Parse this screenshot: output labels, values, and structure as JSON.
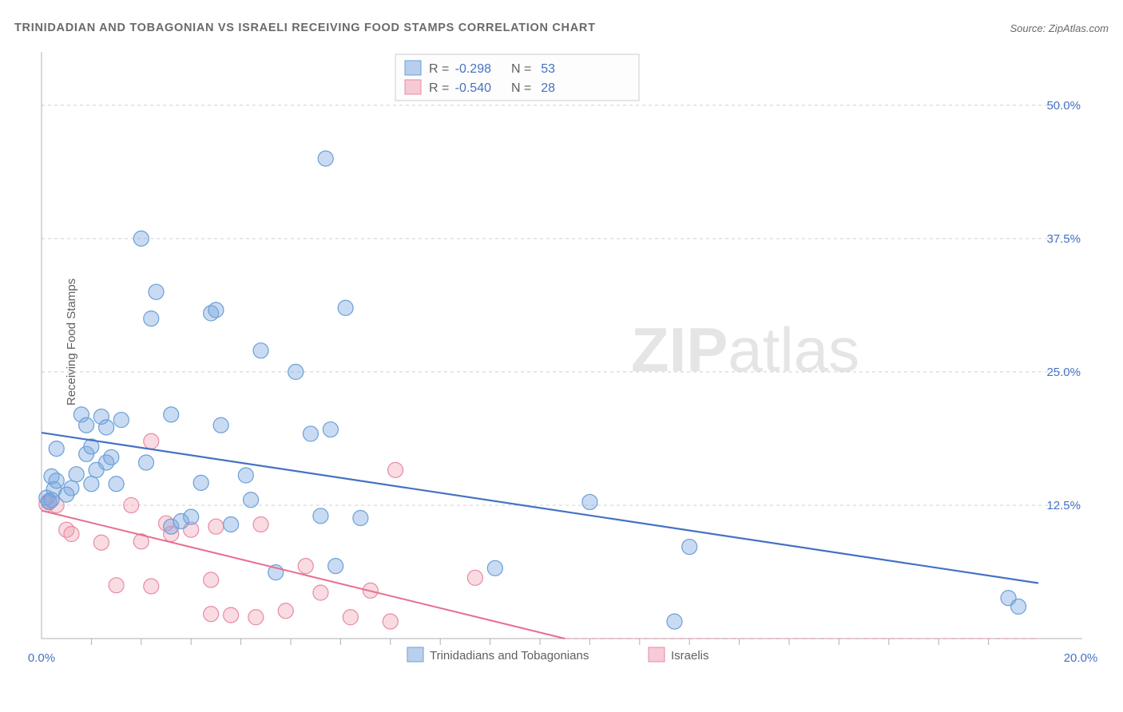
{
  "header": {
    "title": "TRINIDADIAN AND TOBAGONIAN VS ISRAELI RECEIVING FOOD STAMPS CORRELATION CHART",
    "source": "Source: ZipAtlas.com"
  },
  "y_axis_label": "Receiving Food Stamps",
  "chart": {
    "type": "scatter",
    "xlim": [
      0,
      20
    ],
    "ylim": [
      0,
      55
    ],
    "yticks": [
      12.5,
      25.0,
      37.5,
      50.0
    ],
    "ytick_labels": [
      "12.5%",
      "25.0%",
      "37.5%",
      "50.0%"
    ],
    "x_minor_ticks": [
      1,
      2,
      3,
      4,
      5,
      6,
      7,
      8,
      9,
      10,
      11,
      12,
      13,
      14,
      15,
      16,
      17,
      18,
      19
    ],
    "x_start_label": "0.0%",
    "x_end_label": "20.0%",
    "marker_radius": 9.5,
    "colors": {
      "blue_fill": "rgba(126,170,224,0.42)",
      "blue_stroke": "#6a9fd8",
      "pink_fill": "rgba(240,160,180,0.38)",
      "pink_stroke": "#e88aa5",
      "trend_blue": "#4472c4",
      "trend_pink": "#e76f8f",
      "grid": "#d0d0d0",
      "axis": "#b0b0b0",
      "tick_text": "#4472c4",
      "label_text": "#606060",
      "background": "#ffffff"
    },
    "series_blue": {
      "label": "Trinidadians and Tobagonians",
      "R": "-0.298",
      "N": "53",
      "points": [
        [
          0.1,
          13.2
        ],
        [
          0.15,
          12.8
        ],
        [
          0.2,
          13.0
        ],
        [
          0.2,
          15.2
        ],
        [
          0.25,
          14.0
        ],
        [
          0.3,
          14.8
        ],
        [
          0.3,
          17.8
        ],
        [
          0.6,
          14.1
        ],
        [
          0.7,
          15.4
        ],
        [
          0.8,
          21.0
        ],
        [
          0.9,
          17.3
        ],
        [
          0.9,
          20.0
        ],
        [
          1.0,
          18.0
        ],
        [
          1.0,
          14.5
        ],
        [
          1.1,
          15.8
        ],
        [
          1.2,
          20.8
        ],
        [
          1.3,
          19.8
        ],
        [
          1.3,
          16.5
        ],
        [
          1.4,
          17.0
        ],
        [
          1.5,
          14.5
        ],
        [
          1.6,
          20.5
        ],
        [
          2.0,
          37.5
        ],
        [
          2.1,
          16.5
        ],
        [
          2.2,
          30.0
        ],
        [
          2.3,
          32.5
        ],
        [
          2.6,
          10.5
        ],
        [
          2.6,
          21.0
        ],
        [
          2.8,
          11.0
        ],
        [
          3.0,
          11.4
        ],
        [
          3.2,
          14.6
        ],
        [
          3.4,
          30.5
        ],
        [
          3.5,
          30.8
        ],
        [
          3.6,
          20.0
        ],
        [
          3.8,
          10.7
        ],
        [
          4.1,
          15.3
        ],
        [
          4.2,
          13.0
        ],
        [
          4.4,
          27.0
        ],
        [
          4.7,
          6.2
        ],
        [
          5.1,
          25.0
        ],
        [
          5.4,
          19.2
        ],
        [
          5.6,
          11.5
        ],
        [
          5.7,
          45.0
        ],
        [
          5.8,
          19.6
        ],
        [
          5.9,
          6.8
        ],
        [
          6.1,
          31.0
        ],
        [
          6.4,
          11.3
        ],
        [
          9.1,
          6.6
        ],
        [
          11.0,
          12.8
        ],
        [
          12.7,
          1.6
        ],
        [
          13.0,
          8.6
        ],
        [
          19.4,
          3.8
        ],
        [
          19.6,
          3.0
        ],
        [
          0.5,
          13.5
        ]
      ],
      "trend": {
        "x1": 0,
        "y1": 19.3,
        "x2": 20,
        "y2": 5.2
      }
    },
    "series_pink": {
      "label": "Israelis",
      "R": "-0.540",
      "N": "28",
      "points": [
        [
          0.1,
          12.6
        ],
        [
          0.15,
          12.9
        ],
        [
          0.3,
          12.5
        ],
        [
          0.5,
          10.2
        ],
        [
          0.6,
          9.8
        ],
        [
          1.2,
          9.0
        ],
        [
          1.5,
          5.0
        ],
        [
          1.8,
          12.5
        ],
        [
          2.0,
          9.1
        ],
        [
          2.2,
          4.9
        ],
        [
          2.2,
          18.5
        ],
        [
          2.5,
          10.8
        ],
        [
          2.6,
          9.8
        ],
        [
          3.0,
          10.2
        ],
        [
          3.4,
          5.5
        ],
        [
          3.4,
          2.3
        ],
        [
          3.5,
          10.5
        ],
        [
          3.8,
          2.2
        ],
        [
          4.3,
          2.0
        ],
        [
          4.4,
          10.7
        ],
        [
          4.9,
          2.6
        ],
        [
          5.3,
          6.8
        ],
        [
          5.6,
          4.3
        ],
        [
          6.2,
          2.0
        ],
        [
          6.6,
          4.5
        ],
        [
          7.0,
          1.6
        ],
        [
          7.1,
          15.8
        ],
        [
          8.7,
          5.7
        ]
      ],
      "trend_solid": {
        "x1": 0,
        "y1": 12.0,
        "x2": 10.5,
        "y2": 0
      },
      "trend_dash": {
        "x1": 10.5,
        "y1": 0,
        "x2": 20,
        "y2": 0
      }
    }
  },
  "legend_top": {
    "row1": {
      "R_label": "R =",
      "R_val": "-0.298",
      "N_label": "N =",
      "N_val": "53"
    },
    "row2": {
      "R_label": "R =",
      "R_val": "-0.540",
      "N_label": "N =",
      "N_val": "28"
    }
  },
  "legend_bottom": {
    "blue_label": "Trinidadians and Tobagonians",
    "pink_label": "Israelis"
  },
  "watermark": {
    "part1": "ZIP",
    "part2": "atlas"
  }
}
